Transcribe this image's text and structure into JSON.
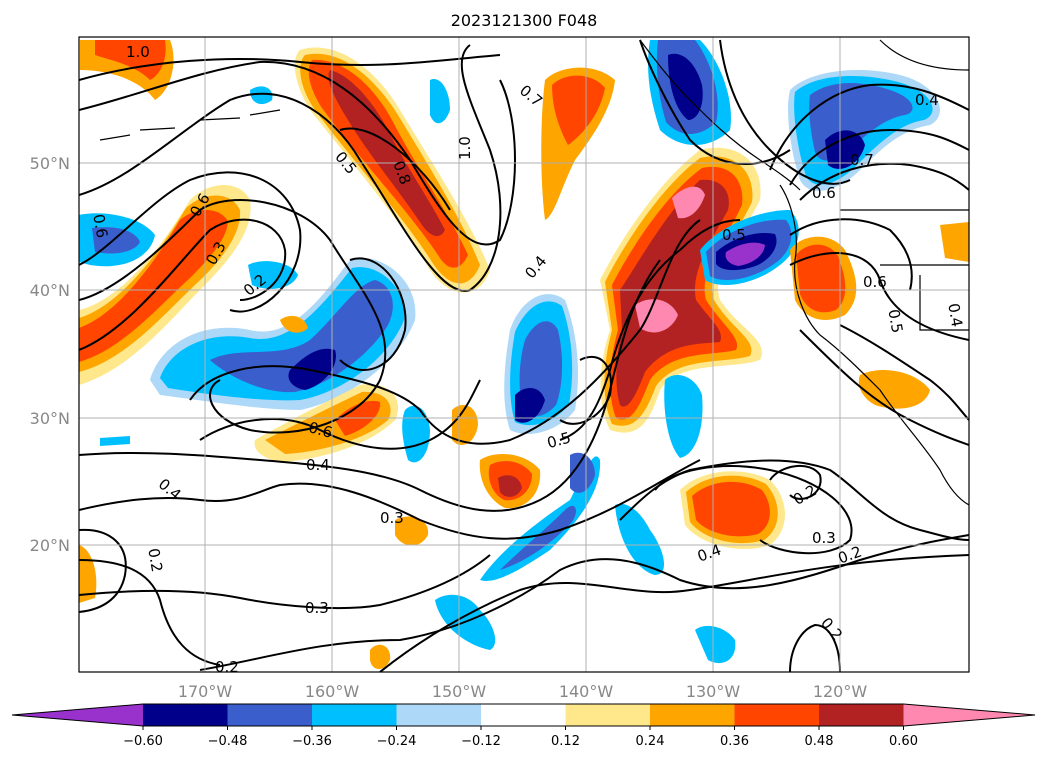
{
  "title": "2023121300 F048",
  "map": {
    "lat_labels": [
      "50°N",
      "40°N",
      "30°N",
      "20°N"
    ],
    "lon_labels": [
      "170°W",
      "160°W",
      "150°W",
      "140°W",
      "130°W",
      "120°W"
    ]
  },
  "contour_labels": [
    "1.0",
    "0.6",
    "0.3",
    "0.5",
    "0.8",
    "1.0",
    "0.7",
    "0.6",
    "0.2",
    "0.4",
    "0.5",
    "0.7",
    "0.6",
    "0.4",
    "0.6",
    "0.5",
    "0.4",
    "0.6",
    "0.4",
    "0.4",
    "0.3",
    "0.5",
    "0.2",
    "0.3",
    "0.2",
    "0.2",
    "0.4",
    "0.3",
    "0.2",
    "0.2"
  ],
  "colorbar": {
    "ticks": [
      "−0.60",
      "−0.48",
      "−0.36",
      "−0.24",
      "−0.12",
      "0.12",
      "0.24",
      "0.36",
      "0.48",
      "0.60"
    ],
    "colors": [
      "#9932CC",
      "#00008B",
      "#3A5FCD",
      "#00BFFF",
      "#ADD8F7",
      "#FFFFFF",
      "#FFE88C",
      "#FFA500",
      "#FF4500",
      "#B22222",
      "#FF88B0"
    ]
  }
}
